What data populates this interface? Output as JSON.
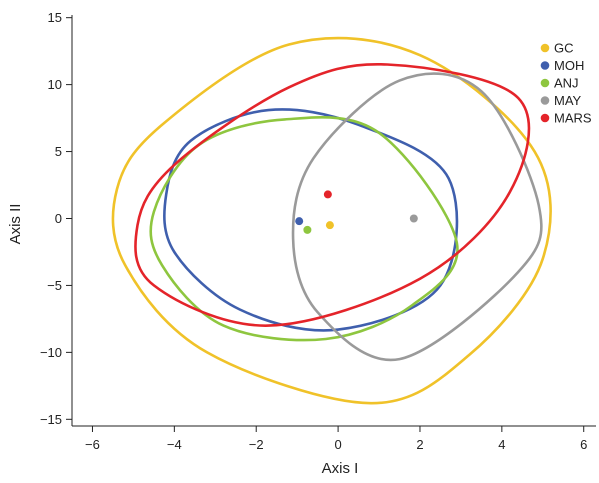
{
  "chart_data": {
    "type": "scatter",
    "title": "",
    "xlabel": "Axis I",
    "ylabel": "Axis II",
    "xlim": [
      -6.5,
      6.3
    ],
    "ylim": [
      -15.5,
      15.2
    ],
    "xticks": [
      -6,
      -4,
      -2,
      0,
      2,
      4,
      6
    ],
    "yticks": [
      -15,
      -10,
      -5,
      0,
      5,
      10,
      15
    ],
    "xtick_labels": [
      "−6",
      "−4",
      "−2",
      "0",
      "2",
      "4",
      "6"
    ],
    "ytick_labels": [
      "−15",
      "−10",
      "−5",
      "0",
      "5",
      "10",
      "15"
    ],
    "grid": false,
    "legend_position": "top-right",
    "series": [
      {
        "name": "GC",
        "color": "#f0c229",
        "centroid": {
          "x": -0.2,
          "y": -0.5
        },
        "ellipse_outline": [
          [
            -5.4,
            2.2
          ],
          [
            -4.3,
            7.0
          ],
          [
            -1.2,
            13.0
          ],
          [
            2.0,
            12.2
          ],
          [
            4.8,
            5.0
          ],
          [
            5.0,
            -3.0
          ],
          [
            3.2,
            -10.2
          ],
          [
            0.8,
            -13.8
          ],
          [
            -3.2,
            -10.0
          ],
          [
            -5.2,
            -3.5
          ]
        ]
      },
      {
        "name": "MOH",
        "color": "#3f5fad",
        "centroid": {
          "x": -0.95,
          "y": -0.2
        },
        "ellipse_outline": [
          [
            -4.2,
            1.8
          ],
          [
            -3.6,
            5.8
          ],
          [
            -1.7,
            8.1
          ],
          [
            0.5,
            7.0
          ],
          [
            2.7,
            3.0
          ],
          [
            2.5,
            -5.0
          ],
          [
            0.0,
            -8.3
          ],
          [
            -2.4,
            -6.8
          ],
          [
            -4.0,
            -2.5
          ]
        ]
      },
      {
        "name": "ANJ",
        "color": "#8ec63f",
        "centroid": {
          "x": -0.75,
          "y": -0.85
        },
        "ellipse_outline": [
          [
            -4.5,
            0.5
          ],
          [
            -3.4,
            5.5
          ],
          [
            -1.3,
            7.4
          ],
          [
            1.0,
            6.4
          ],
          [
            2.9,
            -1.8
          ],
          [
            1.8,
            -6.5
          ],
          [
            -0.3,
            -9.0
          ],
          [
            -2.8,
            -8.0
          ],
          [
            -4.3,
            -3.5
          ]
        ]
      },
      {
        "name": "MAY",
        "color": "#9a9a9a",
        "centroid": {
          "x": 1.85,
          "y": 0.0
        },
        "ellipse_outline": [
          [
            -1.1,
            -1.5
          ],
          [
            -0.6,
            4.5
          ],
          [
            1.5,
            10.3
          ],
          [
            3.5,
            9.5
          ],
          [
            4.9,
            1.0
          ],
          [
            4.4,
            -4.0
          ],
          [
            1.5,
            -10.5
          ],
          [
            -0.5,
            -7.0
          ]
        ]
      },
      {
        "name": "MARS",
        "color": "#e4242a",
        "centroid": {
          "x": -0.25,
          "y": 1.8
        },
        "ellipse_outline": [
          [
            -4.9,
            -0.5
          ],
          [
            -4.0,
            4.0
          ],
          [
            -1.2,
            9.8
          ],
          [
            1.2,
            11.5
          ],
          [
            4.4,
            9.0
          ],
          [
            4.2,
            2.0
          ],
          [
            2.0,
            -4.5
          ],
          [
            -1.7,
            -8.0
          ],
          [
            -4.5,
            -5.0
          ]
        ]
      }
    ]
  }
}
